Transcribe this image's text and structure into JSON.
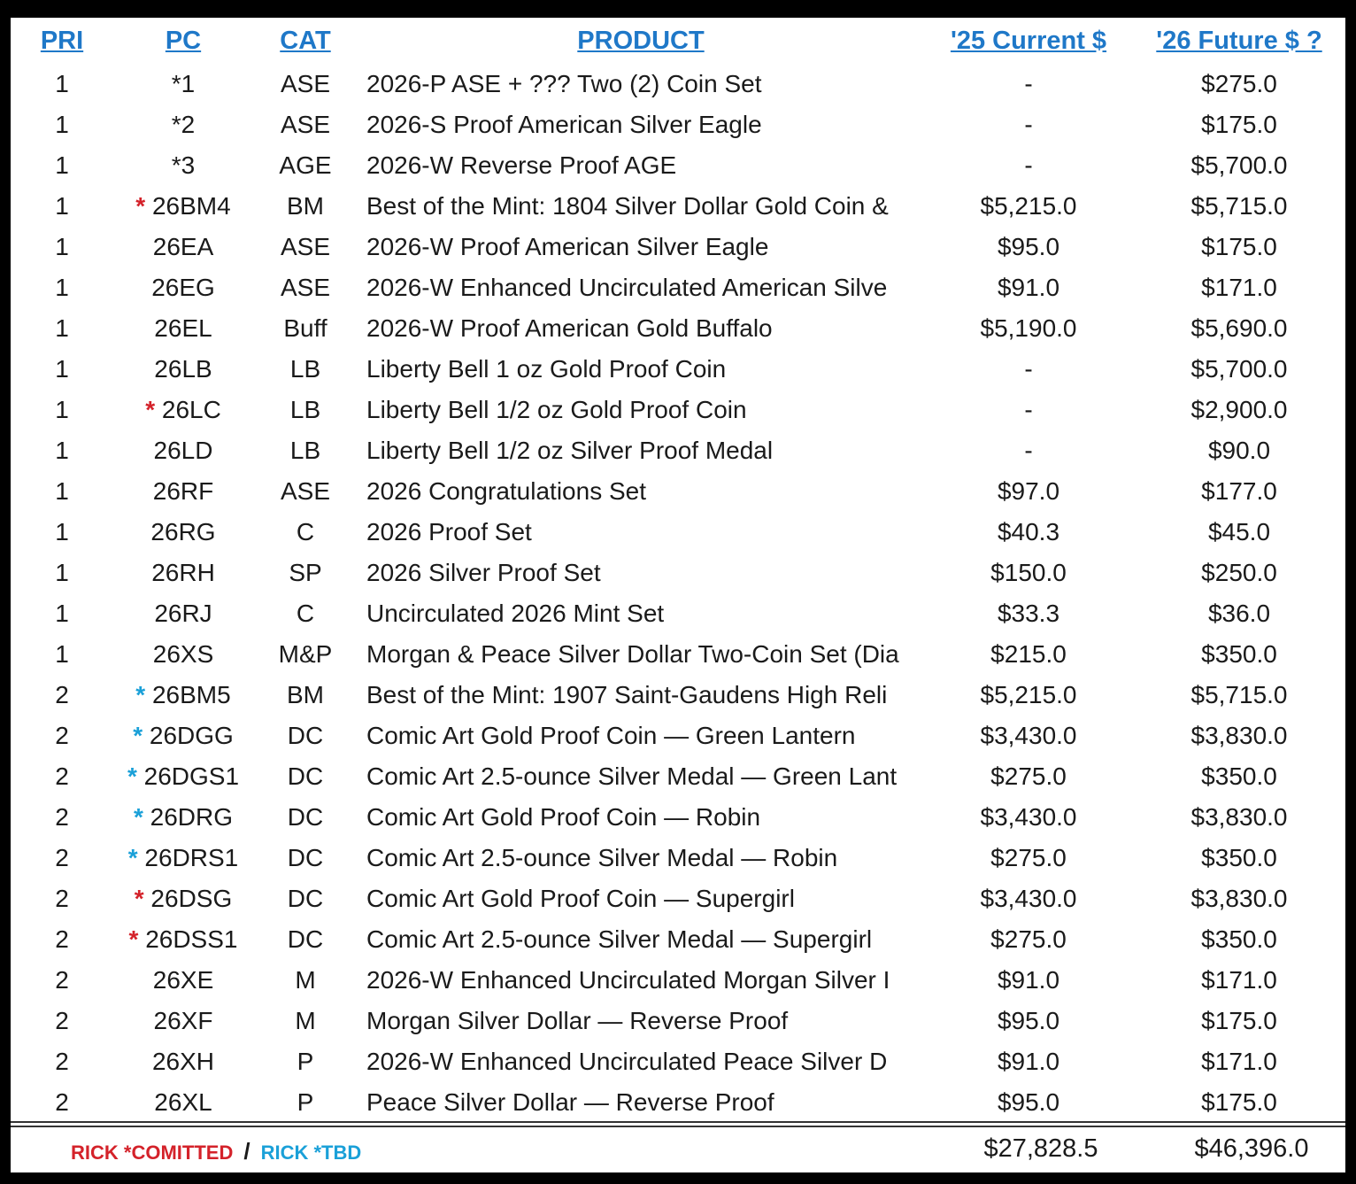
{
  "headers": {
    "pri": "PRI",
    "pc": "PC",
    "cat": "CAT",
    "product": "PRODUCT",
    "current": "'25 Current $",
    "future": "'26 Future $ ?"
  },
  "rows": [
    {
      "pri": "1",
      "star": "",
      "star_color": "",
      "pc": "*1",
      "cat": "ASE",
      "product": "2026-P ASE + ??? Two (2) Coin Set",
      "current": "-",
      "future": "$275.0"
    },
    {
      "pri": "1",
      "star": "",
      "star_color": "",
      "pc": "*2",
      "cat": "ASE",
      "product": "2026-S Proof American Silver Eagle",
      "current": "-",
      "future": "$175.0"
    },
    {
      "pri": "1",
      "star": "",
      "star_color": "",
      "pc": "*3",
      "cat": "AGE",
      "product": "2026-W Reverse Proof AGE",
      "current": "-",
      "future": "$5,700.0"
    },
    {
      "pri": "1",
      "star": "*",
      "star_color": "red",
      "pc": "26BM4",
      "cat": "BM",
      "product": "Best of the Mint: 1804 Silver Dollar Gold Coin &",
      "current": "$5,215.0",
      "future": "$5,715.0"
    },
    {
      "pri": "1",
      "star": "",
      "star_color": "",
      "pc": "26EA",
      "cat": "ASE",
      "product": "2026-W Proof American Silver Eagle",
      "current": "$95.0",
      "future": "$175.0"
    },
    {
      "pri": "1",
      "star": "",
      "star_color": "",
      "pc": "26EG",
      "cat": "ASE",
      "product": "2026-W Enhanced Uncirculated American Silve",
      "current": "$91.0",
      "future": "$171.0"
    },
    {
      "pri": "1",
      "star": "",
      "star_color": "",
      "pc": "26EL",
      "cat": "Buff",
      "product": "2026-W Proof American Gold Buffalo",
      "current": "$5,190.0",
      "future": "$5,690.0"
    },
    {
      "pri": "1",
      "star": "",
      "star_color": "",
      "pc": "26LB",
      "cat": "LB",
      "product": "Liberty Bell 1 oz Gold Proof Coin",
      "current": "-",
      "future": "$5,700.0"
    },
    {
      "pri": "1",
      "star": "*",
      "star_color": "red",
      "pc": "26LC",
      "cat": "LB",
      "product": "Liberty Bell 1/2 oz  Gold Proof Coin",
      "current": "-",
      "future": "$2,900.0"
    },
    {
      "pri": "1",
      "star": "",
      "star_color": "",
      "pc": "26LD",
      "cat": "LB",
      "product": "Liberty Bell 1/2 oz  Silver Proof Medal",
      "current": "-",
      "future": "$90.0"
    },
    {
      "pri": "1",
      "star": "",
      "star_color": "",
      "pc": "26RF",
      "cat": "ASE",
      "product": "2026 Congratulations Set",
      "current": "$97.0",
      "future": "$177.0"
    },
    {
      "pri": "1",
      "star": "",
      "star_color": "",
      "pc": "26RG",
      "cat": "C",
      "product": "2026 Proof Set",
      "current": "$40.3",
      "future": "$45.0"
    },
    {
      "pri": "1",
      "star": "",
      "star_color": "",
      "pc": "26RH",
      "cat": "SP",
      "product": "2026 Silver Proof Set",
      "current": "$150.0",
      "future": "$250.0"
    },
    {
      "pri": "1",
      "star": "",
      "star_color": "",
      "pc": "26RJ",
      "cat": "C",
      "product": "Uncirculated 2026 Mint Set",
      "current": "$33.3",
      "future": "$36.0"
    },
    {
      "pri": "1",
      "star": "",
      "star_color": "",
      "pc": "26XS",
      "cat": "M&P",
      "product": "Morgan & Peace Silver Dollar Two-Coin Set (Dia",
      "current": "$215.0",
      "future": "$350.0"
    },
    {
      "pri": "2",
      "star": "*",
      "star_color": "blue",
      "pc": "26BM5",
      "cat": "BM",
      "product": "Best of the Mint: 1907 Saint-Gaudens High Reli",
      "current": "$5,215.0",
      "future": "$5,715.0"
    },
    {
      "pri": "2",
      "star": "*",
      "star_color": "blue",
      "pc": "26DGG",
      "cat": "DC",
      "product": "Comic Art Gold Proof Coin — Green Lantern",
      "current": "$3,430.0",
      "future": "$3,830.0"
    },
    {
      "pri": "2",
      "star": "*",
      "star_color": "blue",
      "pc": "26DGS1",
      "cat": "DC",
      "product": "Comic Art 2.5-ounce Silver Medal — Green Lant",
      "current": "$275.0",
      "future": "$350.0"
    },
    {
      "pri": "2",
      "star": "*",
      "star_color": "blue",
      "pc": "26DRG",
      "cat": "DC",
      "product": "Comic Art Gold Proof Coin — Robin",
      "current": "$3,430.0",
      "future": "$3,830.0"
    },
    {
      "pri": "2",
      "star": "*",
      "star_color": "blue",
      "pc": "26DRS1",
      "cat": "DC",
      "product": "Comic Art 2.5-ounce Silver Medal — Robin",
      "current": "$275.0",
      "future": "$350.0"
    },
    {
      "pri": "2",
      "star": "*",
      "star_color": "red",
      "pc": "26DSG",
      "cat": "DC",
      "product": "Comic Art Gold Proof Coin — Supergirl",
      "current": "$3,430.0",
      "future": "$3,830.0"
    },
    {
      "pri": "2",
      "star": "*",
      "star_color": "red",
      "pc": "26DSS1",
      "cat": "DC",
      "product": "Comic Art 2.5-ounce Silver Medal — Supergirl",
      "current": "$275.0",
      "future": "$350.0"
    },
    {
      "pri": "2",
      "star": "",
      "star_color": "",
      "pc": "26XE",
      "cat": "M",
      "product": "2026-W Enhanced Uncirculated Morgan Silver I",
      "current": "$91.0",
      "future": "$171.0"
    },
    {
      "pri": "2",
      "star": "",
      "star_color": "",
      "pc": "26XF",
      "cat": "M",
      "product": "Morgan Silver Dollar — Reverse Proof",
      "current": "$95.0",
      "future": "$175.0"
    },
    {
      "pri": "2",
      "star": "",
      "star_color": "",
      "pc": "26XH",
      "cat": "P",
      "product": "2026-W Enhanced Uncirculated Peace Silver D",
      "current": "$91.0",
      "future": "$171.0"
    },
    {
      "pri": "2",
      "star": "",
      "star_color": "",
      "pc": "26XL",
      "cat": "P",
      "product": "Peace Silver Dollar — Reverse Proof",
      "current": "$95.0",
      "future": "$175.0"
    }
  ],
  "footer": {
    "legend_committed": "RICK *COMITTED",
    "legend_separator": "/",
    "legend_tbd": "RICK *TBD",
    "total_current": "$27,828.5",
    "total_future": "$46,396.0"
  },
  "colors": {
    "header": "#1f78c8",
    "star_red": "#d4222a",
    "star_blue": "#1aa0d8"
  }
}
